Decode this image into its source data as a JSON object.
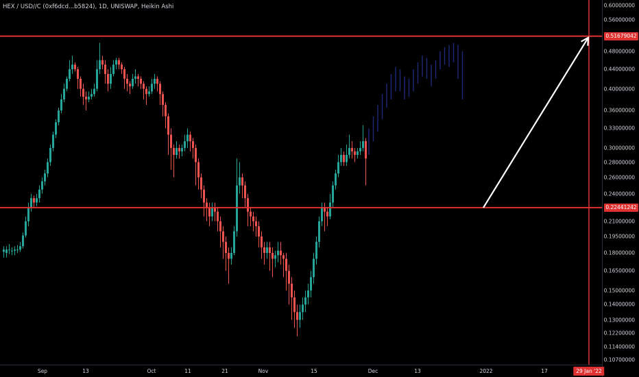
{
  "header": {
    "symbol_title": "HEX / USD//C (0xf6dcd...b5824), 1D, UNISWAP, Heikin Ashi"
  },
  "colors": {
    "up": "#26a69a",
    "down": "#ef5350",
    "projection": "#1e2a78",
    "lines": "#e03131",
    "arrow": "#ffffff"
  },
  "price_axis": {
    "ticks": [
      "0.60000000",
      "0.56000000",
      "0.48000000",
      "0.44000000",
      "0.40000000",
      "0.36000000",
      "0.33000000",
      "0.30000000",
      "0.28000000",
      "0.26000000",
      "0.24000000",
      "0.21000000",
      "0.19500000",
      "0.18000000",
      "0.16500000",
      "0.15000000",
      "0.14000000",
      "0.13000000",
      "0.12200000",
      "0.11400000",
      "0.10700000"
    ],
    "resistance_label": "0.51679042",
    "support_label": "0.22441242"
  },
  "time_axis": {
    "labels": [
      "Sep",
      "13",
      "Oct",
      "11",
      "21",
      "Nov",
      "15",
      "Dec",
      "13",
      "2022",
      "17"
    ],
    "highlight_label": "29 Jan '22"
  },
  "chart_data": {
    "type": "candlestick",
    "style": "Heikin Ashi",
    "log_scale": true,
    "horizontal_levels": [
      0.51679042,
      0.22441242
    ],
    "vertical_marker": "29 Jan '22",
    "candles": [
      [
        0.181,
        0.183,
        0.186,
        0.176
      ],
      [
        0.18,
        0.183,
        0.186,
        0.176
      ],
      [
        0.183,
        0.183,
        0.188,
        0.179
      ],
      [
        0.182,
        0.182,
        0.185,
        0.178
      ],
      [
        0.182,
        0.183,
        0.186,
        0.178
      ],
      [
        0.183,
        0.183,
        0.187,
        0.18
      ],
      [
        0.183,
        0.186,
        0.19,
        0.181
      ],
      [
        0.186,
        0.196,
        0.199,
        0.184
      ],
      [
        0.196,
        0.21,
        0.215,
        0.194
      ],
      [
        0.21,
        0.225,
        0.23,
        0.205
      ],
      [
        0.225,
        0.235,
        0.24,
        0.22
      ],
      [
        0.235,
        0.23,
        0.238,
        0.224
      ],
      [
        0.23,
        0.235,
        0.24,
        0.226
      ],
      [
        0.235,
        0.245,
        0.25,
        0.23
      ],
      [
        0.245,
        0.255,
        0.26,
        0.24
      ],
      [
        0.255,
        0.265,
        0.27,
        0.25
      ],
      [
        0.265,
        0.28,
        0.285,
        0.26
      ],
      [
        0.28,
        0.3,
        0.305,
        0.275
      ],
      [
        0.3,
        0.32,
        0.325,
        0.295
      ],
      [
        0.32,
        0.34,
        0.345,
        0.315
      ],
      [
        0.34,
        0.36,
        0.365,
        0.335
      ],
      [
        0.36,
        0.38,
        0.39,
        0.355
      ],
      [
        0.38,
        0.4,
        0.41,
        0.375
      ],
      [
        0.4,
        0.42,
        0.425,
        0.395
      ],
      [
        0.42,
        0.44,
        0.46,
        0.415
      ],
      [
        0.44,
        0.45,
        0.47,
        0.43
      ],
      [
        0.45,
        0.44,
        0.455,
        0.435
      ],
      [
        0.44,
        0.42,
        0.445,
        0.4
      ],
      [
        0.42,
        0.4,
        0.425,
        0.385
      ],
      [
        0.4,
        0.385,
        0.41,
        0.37
      ],
      [
        0.385,
        0.38,
        0.395,
        0.36
      ],
      [
        0.38,
        0.385,
        0.395,
        0.375
      ],
      [
        0.385,
        0.39,
        0.4,
        0.38
      ],
      [
        0.39,
        0.4,
        0.41,
        0.385
      ],
      [
        0.4,
        0.44,
        0.46,
        0.395
      ],
      [
        0.44,
        0.46,
        0.5,
        0.43
      ],
      [
        0.46,
        0.45,
        0.47,
        0.44
      ],
      [
        0.45,
        0.43,
        0.46,
        0.41
      ],
      [
        0.43,
        0.41,
        0.44,
        0.395
      ],
      [
        0.41,
        0.43,
        0.445,
        0.4
      ],
      [
        0.43,
        0.45,
        0.46,
        0.425
      ],
      [
        0.45,
        0.46,
        0.465,
        0.44
      ],
      [
        0.46,
        0.45,
        0.465,
        0.44
      ],
      [
        0.45,
        0.44,
        0.455,
        0.43
      ],
      [
        0.44,
        0.42,
        0.445,
        0.4
      ],
      [
        0.42,
        0.41,
        0.43,
        0.395
      ],
      [
        0.41,
        0.405,
        0.415,
        0.39
      ],
      [
        0.405,
        0.42,
        0.43,
        0.4
      ],
      [
        0.42,
        0.425,
        0.44,
        0.41
      ],
      [
        0.425,
        0.42,
        0.43,
        0.405
      ],
      [
        0.42,
        0.41,
        0.425,
        0.4
      ],
      [
        0.41,
        0.4,
        0.415,
        0.38
      ],
      [
        0.4,
        0.39,
        0.405,
        0.37
      ],
      [
        0.39,
        0.395,
        0.405,
        0.385
      ],
      [
        0.395,
        0.41,
        0.42,
        0.39
      ],
      [
        0.41,
        0.42,
        0.43,
        0.4
      ],
      [
        0.42,
        0.41,
        0.425,
        0.395
      ],
      [
        0.41,
        0.39,
        0.415,
        0.37
      ],
      [
        0.39,
        0.37,
        0.395,
        0.35
      ],
      [
        0.37,
        0.35,
        0.375,
        0.33
      ],
      [
        0.35,
        0.32,
        0.355,
        0.29
      ],
      [
        0.32,
        0.3,
        0.33,
        0.27
      ],
      [
        0.3,
        0.29,
        0.305,
        0.26
      ],
      [
        0.29,
        0.3,
        0.31,
        0.285
      ],
      [
        0.3,
        0.295,
        0.305,
        0.285
      ],
      [
        0.295,
        0.3,
        0.305,
        0.288
      ],
      [
        0.3,
        0.31,
        0.32,
        0.295
      ],
      [
        0.31,
        0.32,
        0.33,
        0.3
      ],
      [
        0.32,
        0.31,
        0.325,
        0.295
      ],
      [
        0.31,
        0.3,
        0.315,
        0.285
      ],
      [
        0.3,
        0.28,
        0.305,
        0.25
      ],
      [
        0.28,
        0.26,
        0.285,
        0.245
      ],
      [
        0.26,
        0.245,
        0.265,
        0.235
      ],
      [
        0.245,
        0.23,
        0.25,
        0.215
      ],
      [
        0.23,
        0.225,
        0.235,
        0.21
      ],
      [
        0.225,
        0.215,
        0.23,
        0.205
      ],
      [
        0.215,
        0.225,
        0.23,
        0.21
      ],
      [
        0.225,
        0.22,
        0.23,
        0.21
      ],
      [
        0.22,
        0.21,
        0.225,
        0.2
      ],
      [
        0.21,
        0.2,
        0.215,
        0.185
      ],
      [
        0.2,
        0.19,
        0.205,
        0.175
      ],
      [
        0.19,
        0.18,
        0.195,
        0.165
      ],
      [
        0.18,
        0.175,
        0.185,
        0.155
      ],
      [
        0.175,
        0.18,
        0.185,
        0.17
      ],
      [
        0.18,
        0.2,
        0.205,
        0.178
      ],
      [
        0.2,
        0.25,
        0.285,
        0.195
      ],
      [
        0.25,
        0.26,
        0.28,
        0.24
      ],
      [
        0.26,
        0.25,
        0.265,
        0.235
      ],
      [
        0.25,
        0.235,
        0.255,
        0.225
      ],
      [
        0.235,
        0.22,
        0.24,
        0.205
      ],
      [
        0.22,
        0.215,
        0.225,
        0.205
      ],
      [
        0.215,
        0.21,
        0.22,
        0.2
      ],
      [
        0.21,
        0.205,
        0.215,
        0.195
      ],
      [
        0.205,
        0.195,
        0.21,
        0.185
      ],
      [
        0.195,
        0.185,
        0.2,
        0.175
      ],
      [
        0.185,
        0.18,
        0.19,
        0.17
      ],
      [
        0.18,
        0.185,
        0.19,
        0.175
      ],
      [
        0.185,
        0.18,
        0.19,
        0.165
      ],
      [
        0.18,
        0.175,
        0.185,
        0.16
      ],
      [
        0.175,
        0.178,
        0.182,
        0.168
      ],
      [
        0.178,
        0.182,
        0.19,
        0.172
      ],
      [
        0.182,
        0.178,
        0.19,
        0.17
      ],
      [
        0.178,
        0.175,
        0.18,
        0.16
      ],
      [
        0.175,
        0.165,
        0.18,
        0.15
      ],
      [
        0.165,
        0.155,
        0.17,
        0.14
      ],
      [
        0.155,
        0.145,
        0.16,
        0.13
      ],
      [
        0.145,
        0.135,
        0.15,
        0.125
      ],
      [
        0.135,
        0.13,
        0.14,
        0.12
      ],
      [
        0.13,
        0.135,
        0.14,
        0.125
      ],
      [
        0.135,
        0.14,
        0.145,
        0.13
      ],
      [
        0.14,
        0.145,
        0.15,
        0.135
      ],
      [
        0.145,
        0.15,
        0.155,
        0.14
      ],
      [
        0.15,
        0.16,
        0.165,
        0.145
      ],
      [
        0.16,
        0.175,
        0.18,
        0.155
      ],
      [
        0.175,
        0.19,
        0.195,
        0.17
      ],
      [
        0.19,
        0.21,
        0.215,
        0.185
      ],
      [
        0.21,
        0.225,
        0.23,
        0.205
      ],
      [
        0.225,
        0.22,
        0.23,
        0.2
      ],
      [
        0.22,
        0.215,
        0.225,
        0.205
      ],
      [
        0.215,
        0.23,
        0.24,
        0.212
      ],
      [
        0.23,
        0.25,
        0.255,
        0.225
      ],
      [
        0.25,
        0.265,
        0.27,
        0.245
      ],
      [
        0.265,
        0.28,
        0.29,
        0.26
      ],
      [
        0.28,
        0.29,
        0.3,
        0.275
      ],
      [
        0.29,
        0.28,
        0.295,
        0.275
      ],
      [
        0.28,
        0.29,
        0.305,
        0.275
      ],
      [
        0.29,
        0.3,
        0.32,
        0.285
      ],
      [
        0.3,
        0.295,
        0.31,
        0.285
      ],
      [
        0.295,
        0.29,
        0.3,
        0.28
      ],
      [
        0.29,
        0.295,
        0.3,
        0.285
      ],
      [
        0.295,
        0.3,
        0.31,
        0.29
      ],
      [
        0.3,
        0.31,
        0.335,
        0.295
      ],
      [
        0.31,
        0.285,
        0.315,
        0.25
      ]
    ],
    "projection": {
      "style": "ghost bars (projected path)",
      "candles": [
        [
          0.31,
          0.32,
          0.33,
          0.29
        ],
        [
          0.32,
          0.335,
          0.35,
          0.31
        ],
        [
          0.335,
          0.36,
          0.37,
          0.325
        ],
        [
          0.36,
          0.38,
          0.39,
          0.345
        ],
        [
          0.38,
          0.4,
          0.41,
          0.365
        ],
        [
          0.4,
          0.42,
          0.43,
          0.38
        ],
        [
          0.42,
          0.43,
          0.445,
          0.395
        ],
        [
          0.43,
          0.415,
          0.44,
          0.395
        ],
        [
          0.415,
          0.4,
          0.425,
          0.38
        ],
        [
          0.4,
          0.41,
          0.42,
          0.385
        ],
        [
          0.41,
          0.425,
          0.44,
          0.395
        ],
        [
          0.425,
          0.445,
          0.455,
          0.41
        ],
        [
          0.445,
          0.455,
          0.47,
          0.425
        ],
        [
          0.455,
          0.44,
          0.465,
          0.42
        ],
        [
          0.44,
          0.43,
          0.45,
          0.405
        ],
        [
          0.43,
          0.45,
          0.46,
          0.42
        ],
        [
          0.45,
          0.47,
          0.48,
          0.44
        ],
        [
          0.47,
          0.48,
          0.49,
          0.45
        ],
        [
          0.48,
          0.475,
          0.495,
          0.445
        ],
        [
          0.475,
          0.49,
          0.5,
          0.455
        ],
        [
          0.49,
          0.47,
          0.495,
          0.42
        ],
        [
          0.47,
          0.45,
          0.48,
          0.38
        ]
      ]
    },
    "arrow": {
      "from_price": 0.22441242,
      "to_price": 0.51679042
    }
  }
}
